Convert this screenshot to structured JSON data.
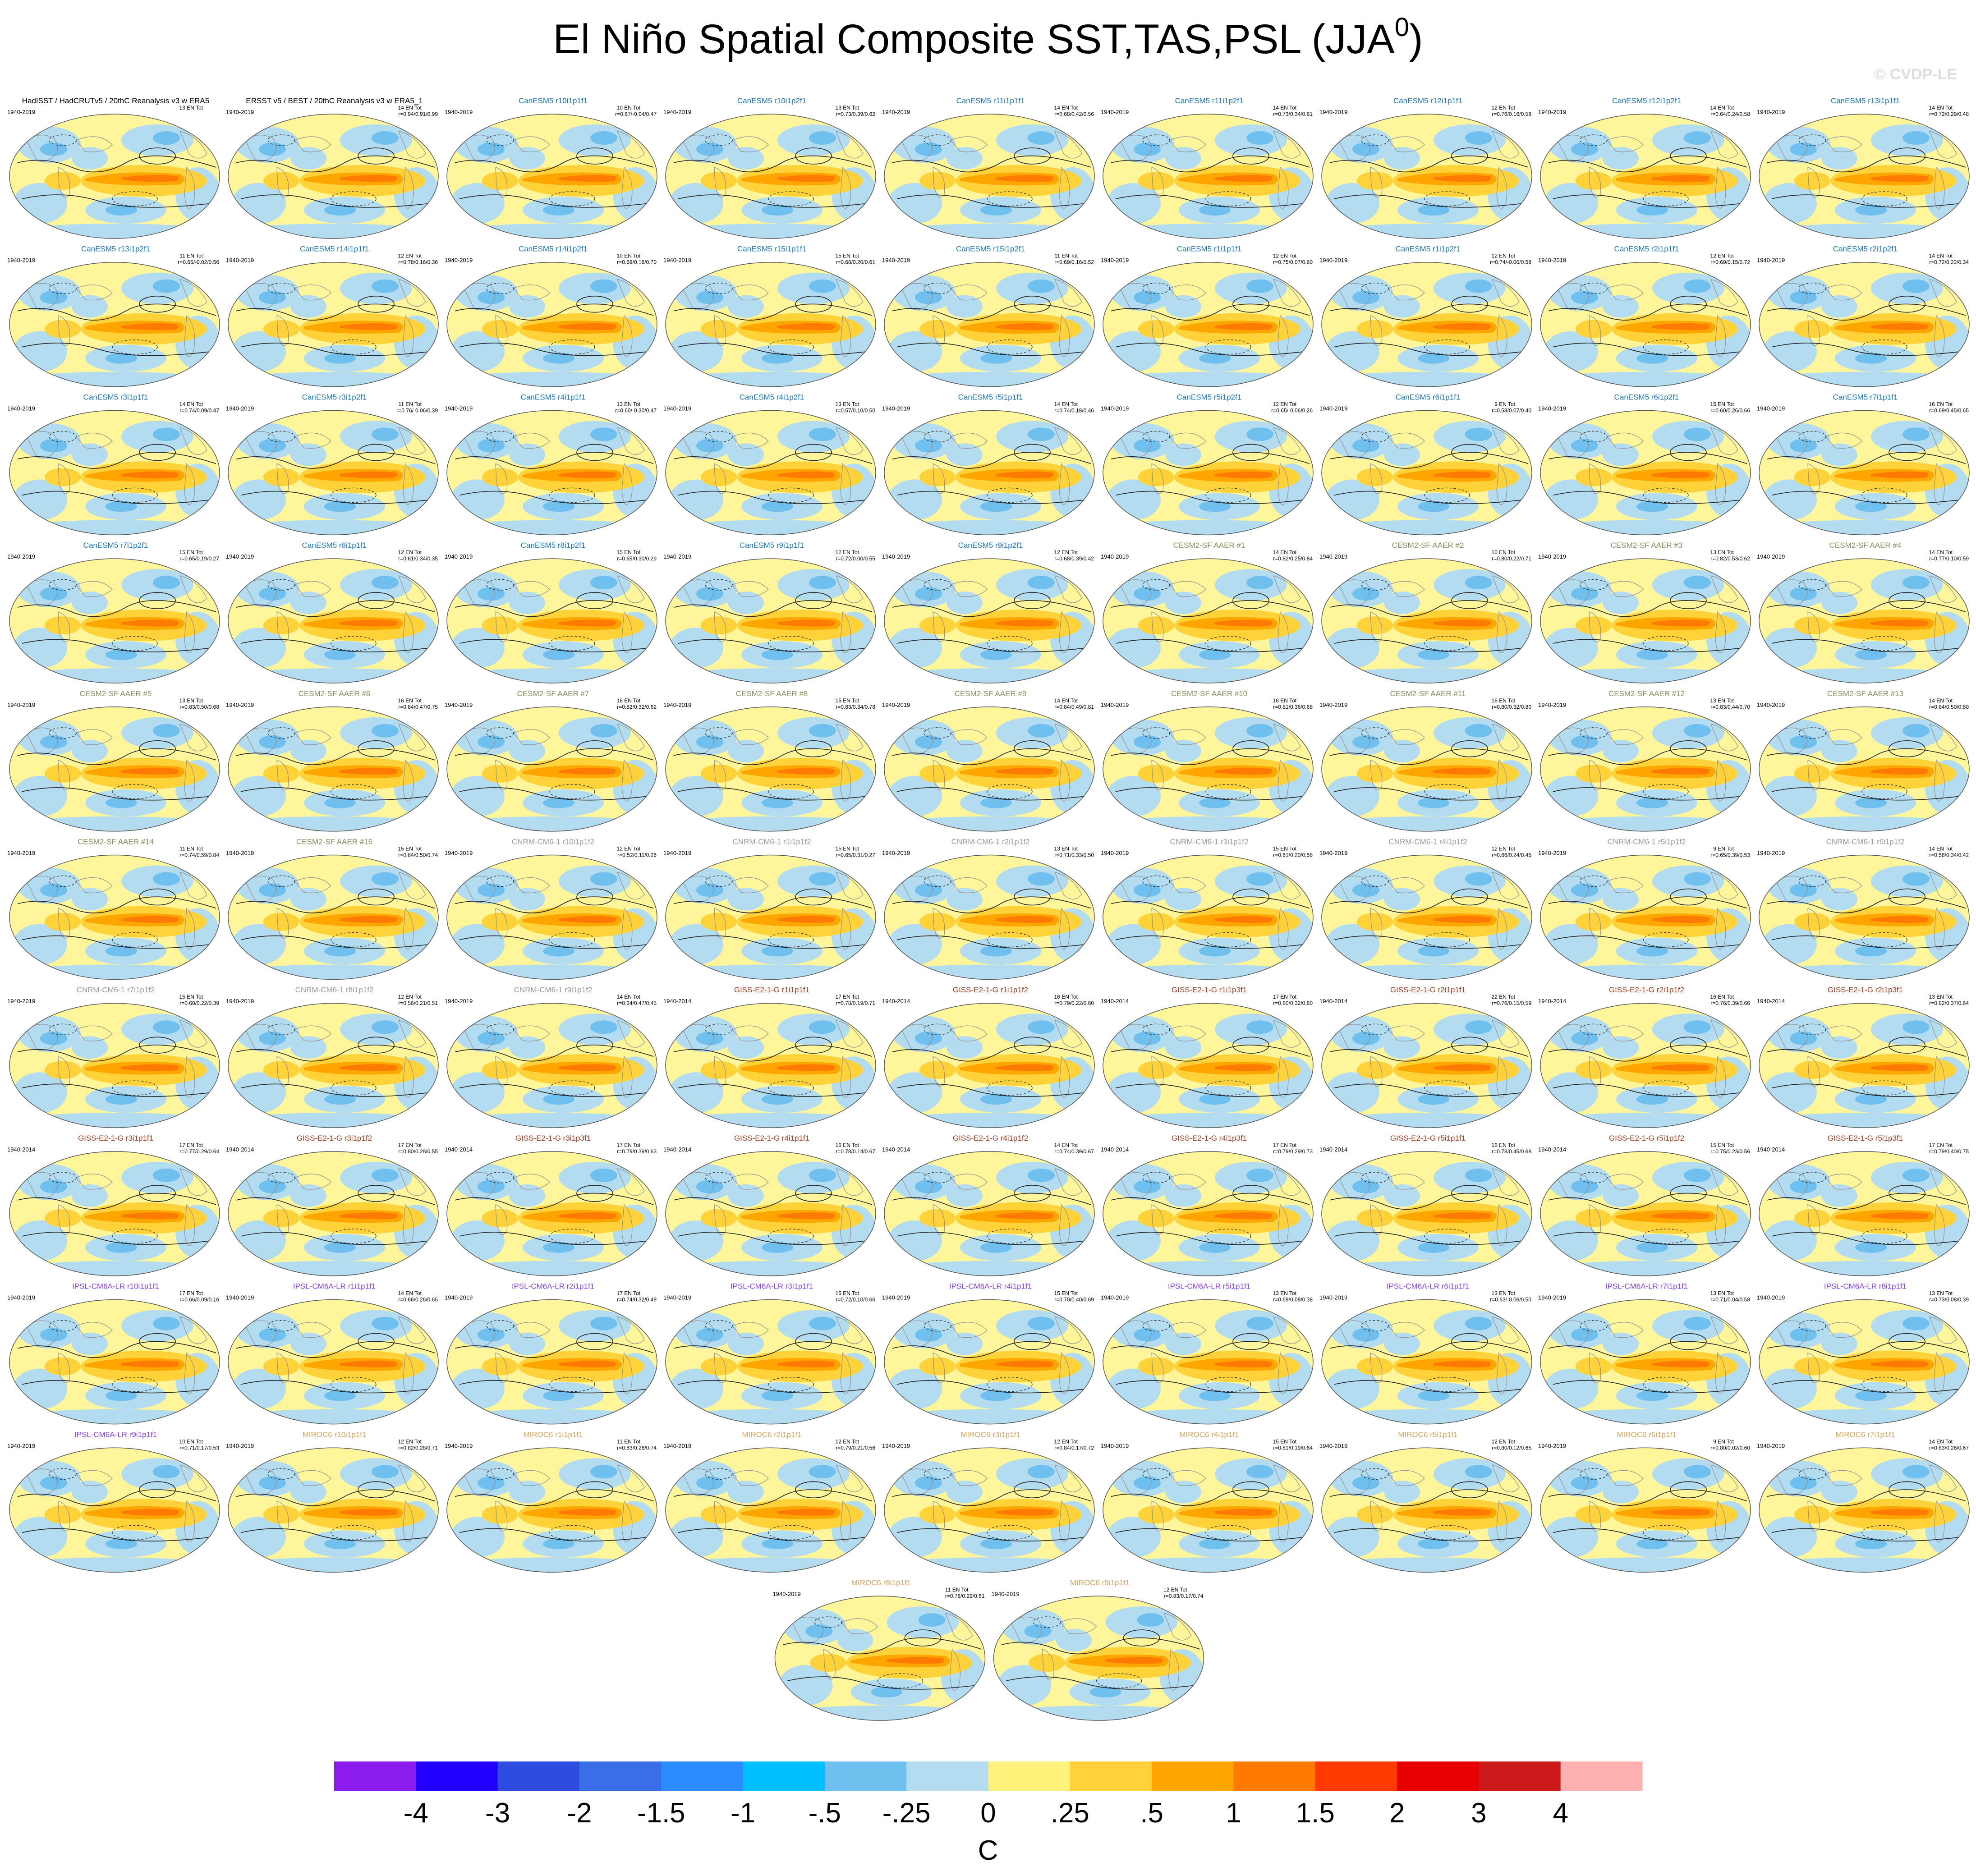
{
  "title": "El Niño Spatial Composite SST,TAS,PSL (JJA",
  "title_sup": "0",
  "title_end": ")",
  "credit": "© CVDP-LE",
  "panels": [
    {
      "title": "HadISST / HadCRUTv5 / 20thC Reanalysis v3 w ERA5",
      "color": "#000000",
      "period": "1940-2019",
      "events": "13 EN Tot"
    },
    {
      "title": "ERSST v5 / BEST / 20thC Reanalysis v3 w ERA5_1",
      "color": "#000000",
      "period": "1940-2019",
      "events": "14 EN Tot",
      "r": "r=0.94/0.91/0.99"
    },
    {
      "title": "CanESM5 r10i1p1f1",
      "color": "#1b75bc",
      "period": "1940-2019",
      "events": "10 EN Tot",
      "r": "r=0.67/-0.04/0.47"
    },
    {
      "title": "CanESM5 r10i1p2f1",
      "color": "#1b75bc",
      "period": "1940-2019",
      "events": "13 EN Tot",
      "r": "r=0.73/0.39/0.62"
    },
    {
      "title": "CanESM5 r11i1p1f1",
      "color": "#1b75bc",
      "period": "1940-2019",
      "events": "14 EN Tot",
      "r": "r=0.68/0.42/0.56"
    },
    {
      "title": "CanESM5 r11i1p2f1",
      "color": "#1b75bc",
      "period": "1940-2019",
      "events": "14 EN Tot",
      "r": "r=0.73/0.34/0.61"
    },
    {
      "title": "CanESM5 r12i1p1f1",
      "color": "#1b75bc",
      "period": "1940-2019",
      "events": "12 EN Tot",
      "r": "r=0.76/0.16/0.58"
    },
    {
      "title": "CanESM5 r12i1p2f1",
      "color": "#1b75bc",
      "period": "1940-2019",
      "events": "14 EN Tot",
      "r": "r=0.64/0.24/0.58"
    },
    {
      "title": "CanESM5 r13i1p1f1",
      "color": "#1b75bc",
      "period": "1940-2019",
      "events": "14 EN Tot",
      "r": "r=0.72/0.29/0.48"
    },
    {
      "title": "CanESM5 r13i1p2f1",
      "color": "#1b75bc",
      "period": "1940-2019",
      "events": "11 EN Tot",
      "r": "r=0.65/-0.02/0.56"
    },
    {
      "title": "CanESM5 r14i1p1f1",
      "color": "#1b75bc",
      "period": "1940-2019",
      "events": "12 EN Tot",
      "r": "r=0.78/0.16/0.36"
    },
    {
      "title": "CanESM5 r14i1p2f1",
      "color": "#1b75bc",
      "period": "1940-2019",
      "events": "10 EN Tot",
      "r": "r=0.68/0.16/0.70"
    },
    {
      "title": "CanESM5 r15i1p1f1",
      "color": "#1b75bc",
      "period": "1940-2019",
      "events": "15 EN Tot",
      "r": "r=0.68/0.20/0.61"
    },
    {
      "title": "CanESM5 r15i1p2f1",
      "color": "#1b75bc",
      "period": "1940-2019",
      "events": "11 EN Tot",
      "r": "r=0.69/0.16/0.52"
    },
    {
      "title": "CanESM5 r1i1p1f1",
      "color": "#1b75bc",
      "period": "1940-2019",
      "events": "12 EN Tot",
      "r": "r=0.75/0.07/0.60"
    },
    {
      "title": "CanESM5 r1i1p2f1",
      "color": "#1b75bc",
      "period": "1940-2019",
      "events": "12 EN Tot",
      "r": "r=0.74/-0.00/0.58"
    },
    {
      "title": "CanESM5 r2i1p1f1",
      "color": "#1b75bc",
      "period": "1940-2019",
      "events": "12 EN Tot",
      "r": "r=0.69/0.15/0.72"
    },
    {
      "title": "CanESM5 r2i1p2f1",
      "color": "#1b75bc",
      "period": "1940-2019",
      "events": "14 EN Tot",
      "r": "r=0.72/0.22/0.34"
    },
    {
      "title": "CanESM5 r3i1p1f1",
      "color": "#1b75bc",
      "period": "1940-2019",
      "events": "14 EN Tot",
      "r": "r=0.74/0.09/0.47"
    },
    {
      "title": "CanESM5 r3i1p2f1",
      "color": "#1b75bc",
      "period": "1940-2019",
      "events": "11 EN Tot",
      "r": "r=0.76/-0.06/0.39"
    },
    {
      "title": "CanESM5 r4i1p1f1",
      "color": "#1b75bc",
      "period": "1940-2019",
      "events": "13 EN Tot",
      "r": "r=0.60/-0.30/0.47"
    },
    {
      "title": "CanESM5 r4i1p2f1",
      "color": "#1b75bc",
      "period": "1940-2019",
      "events": "13 EN Tot",
      "r": "r=0.57/0.10/0.50"
    },
    {
      "title": "CanESM5 r5i1p1f1",
      "color": "#1b75bc",
      "period": "1940-2019",
      "events": "14 EN Tot",
      "r": "r=0.74/0.18/0.46"
    },
    {
      "title": "CanESM5 r5i1p2f1",
      "color": "#1b75bc",
      "period": "1940-2019",
      "events": "12 EN Tot",
      "r": "r=0.65/-0.06/0.26"
    },
    {
      "title": "CanESM5 r6i1p1f1",
      "color": "#1b75bc",
      "period": "1940-2019",
      "events": "9 EN Tot",
      "r": "r=0.58/0.07/0.40"
    },
    {
      "title": "CanESM5 r6i1p2f1",
      "color": "#1b75bc",
      "period": "1940-2019",
      "events": "15 EN Tot",
      "r": "r=0.60/0.26/0.66"
    },
    {
      "title": "CanESM5 r7i1p1f1",
      "color": "#1b75bc",
      "period": "1940-2019",
      "events": "16 EN Tot",
      "r": "r=0.69/0.45/0.65"
    },
    {
      "title": "CanESM5 r7i1p2f1",
      "color": "#1b75bc",
      "period": "1940-2019",
      "events": "15 EN Tot",
      "r": "r=0.65/0.19/0.27"
    },
    {
      "title": "CanESM5 r8i1p1f1",
      "color": "#1b75bc",
      "period": "1940-2019",
      "events": "12 EN Tot",
      "r": "r=0.61/0.34/0.35"
    },
    {
      "title": "CanESM5 r8i1p2f1",
      "color": "#1b75bc",
      "period": "1940-2019",
      "events": "15 EN Tot",
      "r": "r=0.65/0.30/0.29"
    },
    {
      "title": "CanESM5 r9i1p1f1",
      "color": "#1b75bc",
      "period": "1940-2019",
      "events": "12 EN Tot",
      "r": "r=0.72/0.00/0.55"
    },
    {
      "title": "CanESM5 r9i1p2f1",
      "color": "#1b75bc",
      "period": "1940-2019",
      "events": "12 EN Tot",
      "r": "r=0.68/0.39/0.42"
    },
    {
      "title": "CESM2-SF AAER #1",
      "color": "#8c8c5c",
      "period": "1940-2019",
      "events": "14 EN Tot",
      "r": "r=0.82/0.25/0.84"
    },
    {
      "title": "CESM2-SF AAER #2",
      "color": "#8c8c5c",
      "period": "1940-2019",
      "events": "10 EN Tot",
      "r": "r=0.80/0.22/0.71"
    },
    {
      "title": "CESM2-SF AAER #3",
      "color": "#8c8c5c",
      "period": "1940-2019",
      "events": "13 EN Tot",
      "r": "r=0.82/0.53/0.62"
    },
    {
      "title": "CESM2-SF AAER #4",
      "color": "#8c8c5c",
      "period": "1940-2019",
      "events": "14 EN Tot",
      "r": "r=0.77/0.10/0.59"
    },
    {
      "title": "CESM2-SF AAER #5",
      "color": "#8c8c5c",
      "period": "1940-2019",
      "events": "13 EN Tot",
      "r": "r=0.83/0.50/0.68"
    },
    {
      "title": "CESM2-SF AAER #6",
      "color": "#8c8c5c",
      "period": "1940-2019",
      "events": "16 EN Tot",
      "r": "r=0.84/0.47/0.75"
    },
    {
      "title": "CESM2-SF AAER #7",
      "color": "#8c8c5c",
      "period": "1940-2019",
      "events": "16 EN Tot",
      "r": "r=0.82/0.32/0.62"
    },
    {
      "title": "CESM2-SF AAER #8",
      "color": "#8c8c5c",
      "period": "1940-2019",
      "events": "15 EN Tot",
      "r": "r=0.83/0.34/0.78"
    },
    {
      "title": "CESM2-SF AAER #9",
      "color": "#8c8c5c",
      "period": "1940-2019",
      "events": "14 EN Tot",
      "r": "r=0.84/0.49/0.81"
    },
    {
      "title": "CESM2-SF AAER #10",
      "color": "#8c8c5c",
      "period": "1940-2019",
      "events": "16 EN Tot",
      "r": "r=0.81/0.36/0.68"
    },
    {
      "title": "CESM2-SF AAER #11",
      "color": "#8c8c5c",
      "period": "1940-2019",
      "events": "16 EN Tot",
      "r": "r=0.80/0.32/0.80"
    },
    {
      "title": "CESM2-SF AAER #12",
      "color": "#8c8c5c",
      "period": "1940-2019",
      "events": "13 EN Tot",
      "r": "r=0.83/0.44/0.70"
    },
    {
      "title": "CESM2-SF AAER #13",
      "color": "#8c8c5c",
      "period": "1940-2019",
      "events": "14 EN Tot",
      "r": "r=0.84/0.50/0.80"
    },
    {
      "title": "CESM2-SF AAER #14",
      "color": "#8c8c5c",
      "period": "1940-2019",
      "events": "11 EN Tot",
      "r": "r=0.74/0.59/0.84"
    },
    {
      "title": "CESM2-SF AAER #15",
      "color": "#8c8c5c",
      "period": "1940-2019",
      "events": "15 EN Tot",
      "r": "r=0.84/0.50/0.74"
    },
    {
      "title": "CNRM-CM6-1 r10i1p1f2",
      "color": "#9a9a9a",
      "period": "1940-2019",
      "events": "12 EN Tot",
      "r": "r=0.52/0.11/0.26"
    },
    {
      "title": "CNRM-CM6-1 r1i1p1f2",
      "color": "#9a9a9a",
      "period": "1940-2019",
      "events": "15 EN Tot",
      "r": "r=0.65/0.31/0.27"
    },
    {
      "title": "CNRM-CM6-1 r2i1p1f2",
      "color": "#9a9a9a",
      "period": "1940-2019",
      "events": "13 EN Tot",
      "r": "r=0.71/0.33/0.50"
    },
    {
      "title": "CNRM-CM6-1 r3i1p1f2",
      "color": "#9a9a9a",
      "period": "1940-2019",
      "events": "15 EN Tot",
      "r": "r=0.61/0.20/0.58"
    },
    {
      "title": "CNRM-CM6-1 r4i1p1f2",
      "color": "#9a9a9a",
      "period": "1940-2019",
      "events": "12 EN Tot",
      "r": "r=0.66/0.24/0.45"
    },
    {
      "title": "CNRM-CM6-1 r5i1p1f2",
      "color": "#9a9a9a",
      "period": "1940-2019",
      "events": "9 EN Tot",
      "r": "r=0.65/0.39/0.53"
    },
    {
      "title": "CNRM-CM6-1 r6i1p1f2",
      "color": "#9a9a9a",
      "period": "1940-2019",
      "events": "14 EN Tot",
      "r": "r=0.58/0.34/0.42"
    },
    {
      "title": "CNRM-CM6-1 r7i1p1f2",
      "color": "#9a9a9a",
      "period": "1940-2019",
      "events": "15 EN Tot",
      "r": "r=0.60/0.22/0.39"
    },
    {
      "title": "CNRM-CM6-1 r8i1p1f2",
      "color": "#9a9a9a",
      "period": "1940-2019",
      "events": "12 EN Tot",
      "r": "r=0.56/0.21/0.51"
    },
    {
      "title": "CNRM-CM6-1 r9i1p1f2",
      "color": "#9a9a9a",
      "period": "1940-2019",
      "events": "14 EN Tot",
      "r": "r=0.64/0.47/0.45"
    },
    {
      "title": "GISS-E2-1-G r1i1p1f1",
      "color": "#a23b1b",
      "period": "1940-2014",
      "events": "17 EN Tot",
      "r": "r=0.78/0.19/0.71"
    },
    {
      "title": "GISS-E2-1-G r1i1p1f2",
      "color": "#a23b1b",
      "period": "1940-2014",
      "events": "16 EN Tot",
      "r": "r=0.79/0.22/0.60"
    },
    {
      "title": "GISS-E2-1-G r1i1p3f1",
      "color": "#a23b1b",
      "period": "1940-2014",
      "events": "17 EN Tot",
      "r": "r=0.80/0.32/0.80"
    },
    {
      "title": "GISS-E2-1-G r2i1p1f1",
      "color": "#a23b1b",
      "period": "1940-2014",
      "events": "22 EN Tot",
      "r": "r=0.76/0.15/0.59"
    },
    {
      "title": "GISS-E2-1-G r2i1p1f2",
      "color": "#a23b1b",
      "period": "1940-2014",
      "events": "16 EN Tot",
      "r": "r=0.76/0.39/0.66"
    },
    {
      "title": "GISS-E2-1-G r2i1p3f1",
      "color": "#a23b1b",
      "period": "1940-2014",
      "events": "13 EN Tot",
      "r": "r=0.82/0.37/0.64"
    },
    {
      "title": "GISS-E2-1-G r3i1p1f1",
      "color": "#a23b1b",
      "period": "1940-2014",
      "events": "17 EN Tot",
      "r": "r=0.77/0.29/0.64"
    },
    {
      "title": "GISS-E2-1-G r3i1p1f2",
      "color": "#a23b1b",
      "period": "1940-2014",
      "events": "17 EN Tot",
      "r": "r=0.80/0.28/0.55"
    },
    {
      "title": "GISS-E2-1-G r3i1p3f1",
      "color": "#a23b1b",
      "period": "1940-2014",
      "events": "17 EN Tot",
      "r": "r=0.79/0.39/0.63"
    },
    {
      "title": "GISS-E2-1-G r4i1p1f1",
      "color": "#a23b1b",
      "period": "1940-2014",
      "events": "16 EN Tot",
      "r": "r=0.78/0.14/0.67"
    },
    {
      "title": "GISS-E2-1-G r4i1p1f2",
      "color": "#a23b1b",
      "period": "1940-2014",
      "events": "14 EN Tot",
      "r": "r=0.74/0.39/0.67"
    },
    {
      "title": "GISS-E2-1-G r4i1p3f1",
      "color": "#a23b1b",
      "period": "1940-2014",
      "events": "17 EN Tot",
      "r": "r=0.79/0.29/0.73"
    },
    {
      "title": "GISS-E2-1-G r5i1p1f1",
      "color": "#a23b1b",
      "period": "1940-2014",
      "events": "16 EN Tot",
      "r": "r=0.78/0.45/0.68"
    },
    {
      "title": "GISS-E2-1-G r5i1p1f2",
      "color": "#a23b1b",
      "period": "1940-2014",
      "events": "15 EN Tot",
      "r": "r=0.75/0.23/0.56"
    },
    {
      "title": "GISS-E2-1-G r5i1p3f1",
      "color": "#a23b1b",
      "period": "1940-2014",
      "events": "17 EN Tot",
      "r": "r=0.79/0.40/0.75"
    },
    {
      "title": "IPSL-CM6A-LR r10i1p1f1",
      "color": "#8a3ffc",
      "period": "1940-2019",
      "events": "17 EN Tot",
      "r": "r=0.66/0.09/0.16"
    },
    {
      "title": "IPSL-CM6A-LR r1i1p1f1",
      "color": "#8a3ffc",
      "period": "1940-2019",
      "events": "14 EN Tot",
      "r": "r=0.66/0.26/0.65"
    },
    {
      "title": "IPSL-CM6A-LR r2i1p1f1",
      "color": "#8a3ffc",
      "period": "1940-2019",
      "events": "17 EN Tot",
      "r": "r=0.74/0.32/0.49"
    },
    {
      "title": "IPSL-CM6A-LR r3i1p1f1",
      "color": "#8a3ffc",
      "period": "1940-2019",
      "events": "15 EN Tot",
      "r": "r=0.72/0.10/0.66"
    },
    {
      "title": "IPSL-CM6A-LR r4i1p1f1",
      "color": "#8a3ffc",
      "period": "1940-2019",
      "events": "15 EN Tot",
      "r": "r=0.70/0.40/0.69"
    },
    {
      "title": "IPSL-CM6A-LR r5i1p1f1",
      "color": "#8a3ffc",
      "period": "1940-2019",
      "events": "13 EN Tot",
      "r": "r=0.69/0.08/0.38"
    },
    {
      "title": "IPSL-CM6A-LR r6i1p1f1",
      "color": "#8a3ffc",
      "period": "1940-2019",
      "events": "13 EN Tot",
      "r": "r=0.63/-0.06/0.50"
    },
    {
      "title": "IPSL-CM6A-LR r7i1p1f1",
      "color": "#8a3ffc",
      "period": "1940-2019",
      "events": "13 EN Tot",
      "r": "r=0.71/0.04/0.58"
    },
    {
      "title": "IPSL-CM6A-LR r8i1p1f1",
      "color": "#8a3ffc",
      "period": "1940-2019",
      "events": "13 EN Tot",
      "r": "r=0.73/0.08/0.39"
    },
    {
      "title": "IPSL-CM6A-LR r9i1p1f1",
      "color": "#8a3ffc",
      "period": "1940-2019",
      "events": "10 EN Tot",
      "r": "r=0.71/0.17/0.53"
    },
    {
      "title": "MIROC6 r10i1p1f1",
      "color": "#d9a45c",
      "period": "1940-2019",
      "events": "12 EN Tot",
      "r": "r=0.82/0.28/0.71"
    },
    {
      "title": "MIROC6 r1i1p1f1",
      "color": "#d9a45c",
      "period": "1940-2019",
      "events": "11 EN Tot",
      "r": "r=0.83/0.28/0.74"
    },
    {
      "title": "MIROC6 r2i1p1f1",
      "color": "#d9a45c",
      "period": "1940-2019",
      "events": "12 EN Tot",
      "r": "r=0.79/0.21/0.56"
    },
    {
      "title": "MIROC6 r3i1p1f1",
      "color": "#d9a45c",
      "period": "1940-2019",
      "events": "12 EN Tot",
      "r": "r=0.84/0.17/0.72"
    },
    {
      "title": "MIROC6 r4i1p1f1",
      "color": "#d9a45c",
      "period": "1940-2019",
      "events": "15 EN Tot",
      "r": "r=0.81/0.19/0.64"
    },
    {
      "title": "MIROC6 r5i1p1f1",
      "color": "#d9a45c",
      "period": "1940-2019",
      "events": "12 EN Tot",
      "r": "r=0.80/0.12/0.65"
    },
    {
      "title": "MIROC6 r6i1p1f1",
      "color": "#d9a45c",
      "period": "1940-2019",
      "events": "9 EN Tot",
      "r": "r=0.80/0.02/0.60"
    },
    {
      "title": "MIROC6 r7i1p1f1",
      "color": "#d9a45c",
      "period": "1940-2019",
      "events": "14 EN Tot",
      "r": "r=0.83/0.26/0.67"
    },
    {
      "title": "MIROC6 r8i1p1f1",
      "color": "#d9a45c",
      "period": "1940-2019",
      "events": "11 EN Tot",
      "r": "r=0.78/0.29/0.61"
    },
    {
      "title": "MIROC6 r9i1p1f1",
      "color": "#d9a45c",
      "period": "1940-2019",
      "events": "12 EN Tot",
      "r": "r=0.83/0.17/0.74"
    }
  ],
  "colorbar": {
    "unit": "C",
    "colors": [
      "#8c1ced",
      "#2200ff",
      "#2e4de0",
      "#3a6ee8",
      "#2b8cff",
      "#00bfff",
      "#6fc0ee",
      "#b3dcf0",
      "#fff27a",
      "#ffd23a",
      "#ffa500",
      "#ff7a00",
      "#ff3a00",
      "#e80000",
      "#cc1a1a",
      "#ffb0b0"
    ],
    "levels": [
      -4,
      -3,
      -2,
      -1.5,
      -1,
      {
        "value": -0.5,
        "label": "-.5"
      },
      {
        "value": -0.25,
        "label": "-.25"
      },
      0,
      {
        "value": 0.25,
        "label": ".25"
      },
      {
        "value": 0.5,
        "label": ".5"
      },
      1,
      1.5,
      2,
      3,
      4
    ]
  }
}
